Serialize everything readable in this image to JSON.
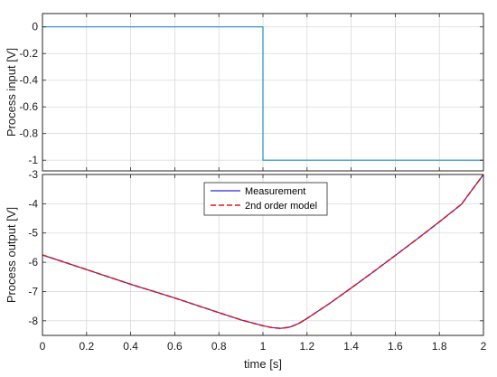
{
  "chart_data": [
    {
      "type": "line",
      "xlabel": "",
      "ylabel": "Process input [V]",
      "xlim": [
        0,
        2
      ],
      "ylim": [
        -1.08,
        0.1
      ],
      "x_ticks": [
        0,
        0.2,
        0.4,
        0.6,
        0.8,
        1,
        1.2,
        1.4,
        1.6,
        1.8,
        2
      ],
      "y_ticks": [
        0,
        -0.2,
        -0.4,
        -0.6,
        -0.8,
        -1
      ],
      "y_tick_labels": [
        "0",
        "-0.2",
        "-0.4",
        "-0.6",
        "-0.8",
        "-1"
      ],
      "grid": true,
      "series": [
        {
          "color": "#1f8fc8",
          "x": [
            0,
            1,
            1,
            2
          ],
          "y": [
            0,
            0,
            -1,
            -1
          ]
        }
      ]
    },
    {
      "type": "line",
      "xlabel": "time [s]",
      "ylabel": "Process output [V]",
      "xlim": [
        0,
        2
      ],
      "ylim": [
        -8.5,
        -3
      ],
      "x_ticks": [
        0,
        0.2,
        0.4,
        0.6,
        0.8,
        1,
        1.2,
        1.4,
        1.6,
        1.8,
        2
      ],
      "x_tick_labels": [
        "0",
        "0.2",
        "0.4",
        "0.6",
        "0.8",
        "1",
        "1.2",
        "1.4",
        "1.6",
        "1.8",
        "2"
      ],
      "y_ticks": [
        -3,
        -4,
        -5,
        -6,
        -7,
        -8
      ],
      "y_tick_labels": [
        "-3",
        "-4",
        "-5",
        "-6",
        "-7",
        "-8"
      ],
      "grid": true,
      "legend": "top-center",
      "series": [
        {
          "name": "Measurement",
          "color": "#2b2bd8",
          "style": "solid",
          "x": [
            0,
            0.2,
            0.4,
            0.6,
            0.8,
            0.9,
            1.0,
            1.04,
            1.08,
            1.12,
            1.16,
            1.2,
            1.3,
            1.4,
            1.5,
            1.6,
            1.7,
            1.8,
            1.9,
            2.0
          ],
          "y": [
            -5.75,
            -6.25,
            -6.75,
            -7.22,
            -7.72,
            -7.97,
            -8.17,
            -8.23,
            -8.26,
            -8.22,
            -8.1,
            -7.92,
            -7.42,
            -6.88,
            -6.33,
            -5.77,
            -5.2,
            -4.62,
            -4.02,
            -3.0
          ]
        },
        {
          "name": "2nd order model",
          "color": "#e01818",
          "style": "dashed",
          "x": [
            0,
            0.2,
            0.4,
            0.6,
            0.8,
            0.9,
            1.0,
            1.04,
            1.08,
            1.12,
            1.16,
            1.2,
            1.3,
            1.4,
            1.5,
            1.6,
            1.7,
            1.8,
            1.9,
            2.0
          ],
          "y": [
            -5.75,
            -6.25,
            -6.75,
            -7.22,
            -7.72,
            -7.97,
            -8.17,
            -8.23,
            -8.26,
            -8.22,
            -8.1,
            -7.92,
            -7.42,
            -6.88,
            -6.33,
            -5.77,
            -5.2,
            -4.62,
            -4.02,
            -3.0
          ]
        }
      ]
    }
  ]
}
